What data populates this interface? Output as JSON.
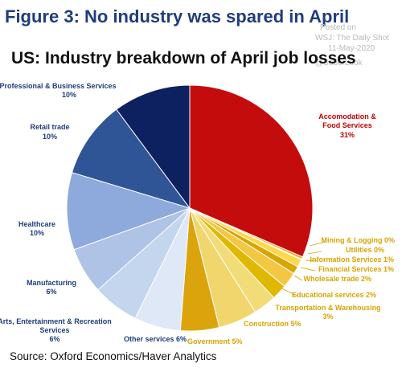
{
  "figure": {
    "title": "Figure 3: No industry was spared in April",
    "source": "Source: Oxford Economics/Haver Analytics"
  },
  "watermark": {
    "posted_on": "Posted on",
    "publisher": "WSJ: The Daily Shot",
    "date": "11-May-2020",
    "handle": "@SoberLook"
  },
  "chart_data": {
    "type": "pie",
    "title": "US: Industry breakdown of April job losses",
    "start_angle_deg": 0,
    "direction": "clockwise",
    "slices": [
      {
        "label": "Accomodation & Food Services",
        "value": 31,
        "value_label": "31%",
        "color": "#c40c0c",
        "label_color": "#c00000"
      },
      {
        "label": "Mining & Logging",
        "value": 0.3,
        "value_label": "0%",
        "color": "#f5a300",
        "label_color": "#d9a300"
      },
      {
        "label": "Utilities",
        "value": 0.1,
        "value_label": "0%",
        "color": "#f8c000",
        "label_color": "#d9a300"
      },
      {
        "label": "Information Services",
        "value": 1,
        "value_label": "1%",
        "color": "#ffd84a",
        "label_color": "#d9a300"
      },
      {
        "label": "Financial Services",
        "value": 1,
        "value_label": "1%",
        "color": "#d9a500",
        "label_color": "#d9a300"
      },
      {
        "label": "Wholesale trade",
        "value": 2,
        "value_label": "2%",
        "color": "#f4c742",
        "label_color": "#d9a300"
      },
      {
        "label": "Educational services",
        "value": 2,
        "value_label": "2%",
        "color": "#e0b800",
        "label_color": "#d9a300"
      },
      {
        "label": "Transportation & Warehousing",
        "value": 3,
        "value_label": "3%",
        "color": "#f2dc78",
        "label_color": "#d9a300"
      },
      {
        "label": "Construction",
        "value": 5,
        "value_label": "5%",
        "color": "#f0d66c",
        "label_color": "#d9a300"
      },
      {
        "label": "Government",
        "value": 5,
        "value_label": "5%",
        "color": "#dca40c",
        "label_color": "#d9a300"
      },
      {
        "label": "Other services",
        "value": 6,
        "value_label": "6%",
        "color": "#dfe8f6",
        "label_color": "#1f3d7a"
      },
      {
        "label": "Arts, Entertainment & Recreation Services",
        "value": 6,
        "value_label": "6%",
        "color": "#c4d5ee",
        "label_color": "#1f3d7a"
      },
      {
        "label": "Manufacturing",
        "value": 6,
        "value_label": "6%",
        "color": "#aec3e6",
        "label_color": "#1f3d7a"
      },
      {
        "label": "Healthcare",
        "value": 10,
        "value_label": "10%",
        "color": "#8ea9db",
        "label_color": "#1f3d7a"
      },
      {
        "label": "Retail trade",
        "value": 10,
        "value_label": "10%",
        "color": "#2f5597",
        "label_color": "#1f3d7a"
      },
      {
        "label": "Professional & Business Services",
        "value": 10,
        "value_label": "10%",
        "color": "#0d2161",
        "label_color": "#1f3d7a"
      }
    ]
  }
}
